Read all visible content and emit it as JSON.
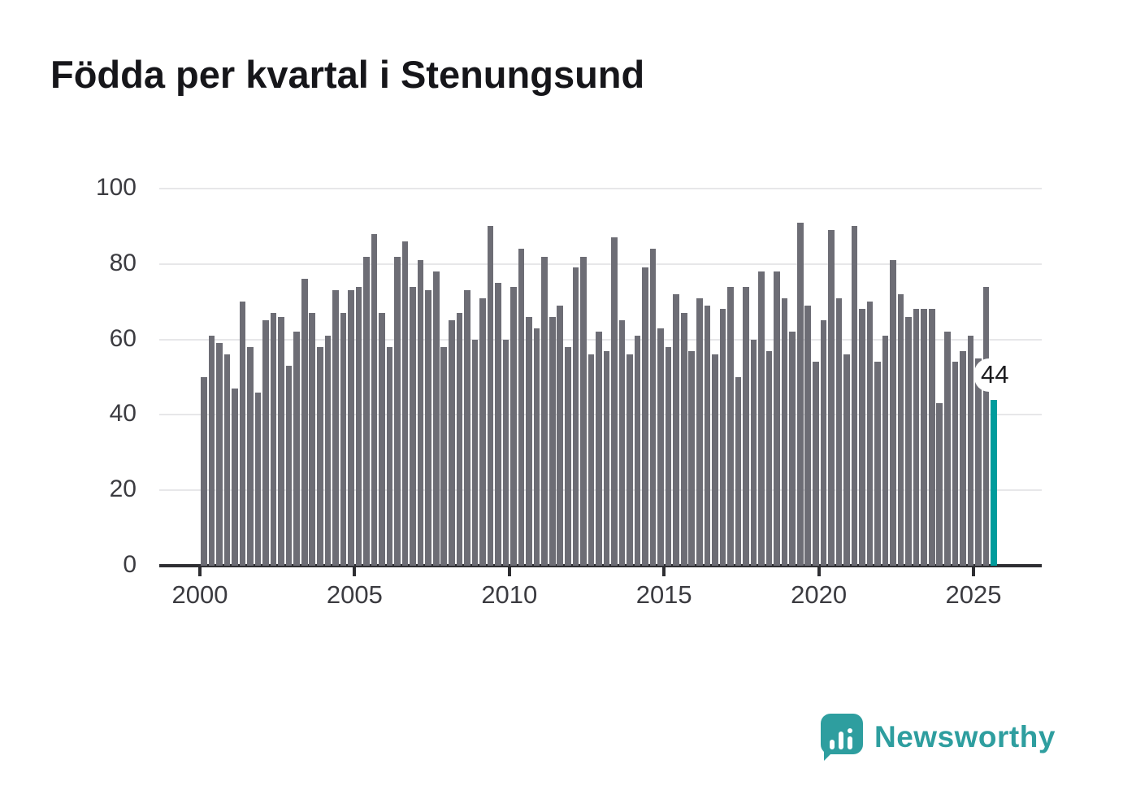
{
  "title": "Födda per kvartal i Stenungsund",
  "annotation": {
    "label": "44"
  },
  "branding": {
    "name": "Newsworthy",
    "accent_color": "#2e9e9f"
  },
  "colors": {
    "bar": "#6d6d75",
    "highlight_bar": "#009c9c",
    "gridline": "#e7e7e9",
    "axis": "#2e2e32"
  },
  "chart_data": {
    "type": "bar",
    "title": "Födda per kvartal i Stenungsund",
    "xlabel": "",
    "ylabel": "",
    "ylim": [
      0,
      100
    ],
    "grid": "horizontal",
    "y_tick_labels": [
      "0",
      "20",
      "40",
      "60",
      "80",
      "100"
    ],
    "y_tick_values": [
      0,
      20,
      40,
      60,
      80,
      100
    ],
    "x_tick_labels": [
      "2000",
      "2005",
      "2010",
      "2015",
      "2020",
      "2025"
    ],
    "series_note": "quarterly births 2000Q1-2025Q3",
    "values": [
      50,
      61,
      59,
      56,
      47,
      70,
      58,
      46,
      65,
      67,
      66,
      53,
      62,
      76,
      67,
      58,
      61,
      73,
      67,
      73,
      74,
      82,
      88,
      67,
      58,
      82,
      86,
      74,
      81,
      73,
      78,
      58,
      65,
      67,
      73,
      60,
      71,
      90,
      75,
      60,
      74,
      84,
      66,
      63,
      82,
      66,
      69,
      58,
      79,
      82,
      56,
      62,
      57,
      87,
      65,
      56,
      61,
      79,
      84,
      63,
      58,
      72,
      67,
      57,
      71,
      69,
      56,
      68,
      74,
      50,
      74,
      60,
      78,
      57,
      78,
      71,
      62,
      91,
      69,
      54,
      65,
      89,
      71,
      56,
      90,
      68,
      70,
      54,
      61,
      81,
      72,
      66,
      68,
      68,
      68,
      43,
      62,
      54,
      57,
      61,
      55,
      74,
      44
    ],
    "highlight_index": 102,
    "highlight_value": 44,
    "highlight_label": "44"
  }
}
